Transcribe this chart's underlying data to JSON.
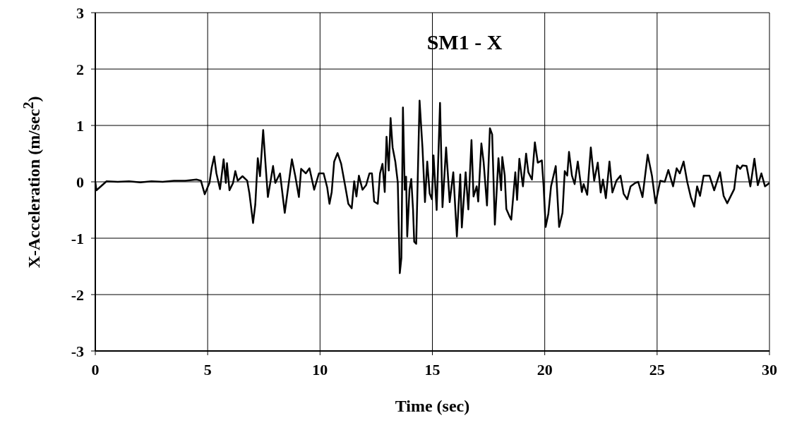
{
  "chart_data": {
    "type": "line",
    "title": "SM1 - X",
    "xlabel": "Time (sec)",
    "ylabel": "X-Acceleration (m/sec$^{2}$)",
    "xlim": [
      0,
      30
    ],
    "xticks": [
      0,
      5,
      10,
      15,
      20,
      25,
      30
    ],
    "ylim": [
      -3,
      3
    ],
    "yticks": [
      -3,
      -2,
      -1,
      0,
      1,
      2,
      3
    ],
    "grid": true,
    "marker": "none",
    "line_style": "solid",
    "series": [
      {
        "color": "#000000",
        "x": [
          0,
          0.05,
          0.5,
          1,
          1.5,
          2,
          2.5,
          3,
          3.5,
          4,
          4.5,
          4.7,
          4.87,
          5.08,
          5.18,
          5.29,
          5.39,
          5.55,
          5.71,
          5.81,
          5.86,
          5.97,
          6.13,
          6.23,
          6.34,
          6.55,
          6.76,
          6.86,
          7.02,
          7.12,
          7.23,
          7.33,
          7.47,
          7.59,
          7.68,
          7.91,
          8.01,
          8.22,
          8.43,
          8.75,
          8.9,
          9.06,
          9.16,
          9.37,
          9.53,
          9.74,
          9.95,
          10.16,
          10.32,
          10.42,
          10.52,
          10.63,
          10.78,
          10.94,
          11.15,
          11.26,
          11.41,
          11.52,
          11.62,
          11.73,
          11.89,
          12.05,
          12.2,
          12.31,
          12.41,
          12.57,
          12.67,
          12.78,
          12.88,
          12.96,
          13.06,
          13.14,
          13.23,
          13.35,
          13.46,
          13.55,
          13.62,
          13.69,
          13.77,
          13.83,
          13.88,
          13.98,
          14.06,
          14.14,
          14.19,
          14.28,
          14.43,
          14.56,
          14.67,
          14.77,
          14.88,
          14.98,
          15.05,
          15.19,
          15.34,
          15.45,
          15.61,
          15.77,
          15.93,
          16.09,
          16.24,
          16.31,
          16.48,
          16.6,
          16.74,
          16.83,
          16.97,
          17.04,
          17.18,
          17.28,
          17.43,
          17.56,
          17.66,
          17.78,
          17.94,
          18.06,
          18.11,
          18.22,
          18.29,
          18.43,
          18.51,
          18.69,
          18.77,
          18.87,
          19.03,
          19.17,
          19.27,
          19.43,
          19.56,
          19.69,
          19.87,
          19.95,
          20.04,
          20.16,
          20.28,
          20.49,
          20.64,
          20.79,
          20.89,
          21,
          21.08,
          21.21,
          21.33,
          21.47,
          21.65,
          21.73,
          21.89,
          22.05,
          22.2,
          22.36,
          22.49,
          22.59,
          22.72,
          22.88,
          23.01,
          23.19,
          23.37,
          23.51,
          23.67,
          23.82,
          24.03,
          24.16,
          24.35,
          24.58,
          24.77,
          24.93,
          25.14,
          25.34,
          25.5,
          25.71,
          25.87,
          26.01,
          26.18,
          26.34,
          26.5,
          26.65,
          26.78,
          26.91,
          27.07,
          27.33,
          27.54,
          27.8,
          27.96,
          28.12,
          28.43,
          28.56,
          28.7,
          28.8,
          28.98,
          29.15,
          29.33,
          29.48,
          29.64,
          29.8,
          30
        ],
        "values": [
          0,
          -0.15,
          0.01,
          0,
          0.01,
          -0.01,
          0.01,
          0,
          0.02,
          0.02,
          0.04,
          0.02,
          -0.22,
          -0.02,
          0.25,
          0.45,
          0.15,
          -0.13,
          0.4,
          -0.02,
          0.33,
          -0.15,
          -0.02,
          0.19,
          0.02,
          0.1,
          0.02,
          -0.21,
          -0.73,
          -0.4,
          0.42,
          0.1,
          0.92,
          0.23,
          -0.27,
          0.28,
          -0.02,
          0.15,
          -0.55,
          0.4,
          0.1,
          -0.27,
          0.23,
          0.15,
          0.24,
          -0.14,
          0.15,
          0.15,
          -0.1,
          -0.39,
          -0.18,
          0.36,
          0.51,
          0.32,
          -0.14,
          -0.39,
          -0.47,
          0.01,
          -0.26,
          0.11,
          -0.14,
          -0.06,
          0.15,
          0.15,
          -0.35,
          -0.39,
          0.15,
          0.32,
          -0.18,
          0.8,
          0.2,
          1.13,
          0.61,
          0.36,
          -0.01,
          -1.62,
          -1.35,
          1.32,
          -0.14,
          0.09,
          -0.97,
          -0.14,
          0.05,
          -0.5,
          -1.06,
          -1.1,
          1.44,
          0.6,
          -0.36,
          0.36,
          -0.21,
          -0.31,
          0.47,
          -0.5,
          1.4,
          -0.45,
          0.61,
          -0.36,
          0.17,
          -0.97,
          0.13,
          -0.81,
          0.17,
          -0.49,
          0.74,
          -0.26,
          -0.08,
          -0.35,
          0.68,
          0.35,
          -0.42,
          0.95,
          0.84,
          -0.76,
          0.42,
          -0.15,
          0.44,
          0.11,
          -0.48,
          -0.61,
          -0.67,
          0.17,
          -0.32,
          0.41,
          -0.08,
          0.5,
          0.17,
          0.04,
          0.7,
          0.34,
          0.38,
          -0.08,
          -0.8,
          -0.57,
          -0.08,
          0.28,
          -0.8,
          -0.55,
          0.19,
          0.11,
          0.53,
          0.11,
          -0.04,
          0.36,
          -0.18,
          -0.04,
          -0.23,
          0.61,
          0.02,
          0.34,
          -0.19,
          0.04,
          -0.29,
          0.36,
          -0.19,
          0.02,
          0.11,
          -0.21,
          -0.31,
          -0.08,
          -0.02,
          0,
          -0.27,
          0.48,
          0.11,
          -0.38,
          0.02,
          0,
          0.21,
          -0.08,
          0.24,
          0.15,
          0.36,
          0,
          -0.27,
          -0.44,
          -0.08,
          -0.25,
          0.11,
          0.11,
          -0.15,
          0.17,
          -0.25,
          -0.38,
          -0.13,
          0.29,
          0.23,
          0.29,
          0.28,
          -0.08,
          0.41,
          -0.06,
          0.15,
          -0.08,
          -0.02
        ]
      }
    ]
  }
}
